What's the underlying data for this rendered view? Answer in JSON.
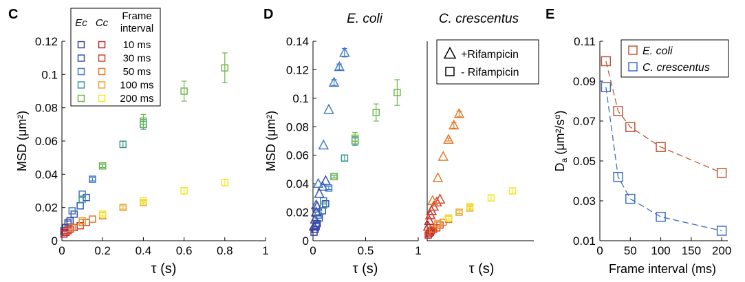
{
  "panels": {
    "C": "C",
    "D": "D",
    "E": "E"
  },
  "chart_data": [
    {
      "id": "C",
      "type": "scatter",
      "xlabel": "τ (s)",
      "ylabel": "MSD (μm²)",
      "xlim": [
        0,
        1
      ],
      "ylim": [
        0,
        0.12
      ],
      "xticks": [
        "0",
        "0.2",
        "0.4",
        "0.6",
        "0.8",
        "1"
      ],
      "yticks": [
        "0",
        "0.02",
        "0.04",
        "0.06",
        "0.08",
        "0.1",
        "0.12"
      ],
      "legend": {
        "headers": [
          "Ec",
          "Cc",
          "Frame interval"
        ],
        "rows": [
          {
            "label": "10 ms",
            "ec_color": "#3b3f9a",
            "cc_color": "#c0262a"
          },
          {
            "label": "30 ms",
            "ec_color": "#3456b0",
            "cc_color": "#d6402a"
          },
          {
            "label": "50 ms",
            "ec_color": "#3c78c4",
            "cc_color": "#e07a2a"
          },
          {
            "label": "100 ms",
            "ec_color": "#3e9c8a",
            "cc_color": "#eaa52c"
          },
          {
            "label": "200 ms",
            "ec_color": "#6fb84a",
            "cc_color": "#f0e82a"
          }
        ]
      },
      "series": [
        {
          "name": "E. coli 10 ms",
          "color": "#3b3f9a",
          "x": [
            0.01,
            0.02,
            0.03,
            0.04
          ],
          "y": [
            0.006,
            0.008,
            0.01,
            0.012
          ],
          "err": [
            0,
            0,
            0,
            0
          ]
        },
        {
          "name": "E. coli 30 ms",
          "color": "#3456b0",
          "x": [
            0.03,
            0.06,
            0.09,
            0.12
          ],
          "y": [
            0.011,
            0.016,
            0.021,
            0.026
          ],
          "err": [
            0,
            0,
            0,
            0
          ]
        },
        {
          "name": "E. coli 50 ms",
          "color": "#3c78c4",
          "x": [
            0.05,
            0.1,
            0.15,
            0.2
          ],
          "y": [
            0.018,
            0.028,
            0.037,
            0.045
          ],
          "err": [
            0,
            0,
            0.001,
            0.001
          ]
        },
        {
          "name": "E. coli 100 ms",
          "color": "#3e9c8a",
          "x": [
            0.1,
            0.2,
            0.3,
            0.4
          ],
          "y": [
            0.025,
            0.045,
            0.058,
            0.07
          ],
          "err": [
            0,
            0.001,
            0.002,
            0.003
          ]
        },
        {
          "name": "E. coli 200 ms",
          "color": "#6fb84a",
          "x": [
            0.2,
            0.4,
            0.6,
            0.8
          ],
          "y": [
            0.045,
            0.072,
            0.09,
            0.104
          ],
          "err": [
            0.001,
            0.004,
            0.006,
            0.009
          ]
        },
        {
          "name": "C. crescentus 10 ms",
          "color": "#c0262a",
          "x": [
            0.01,
            0.02,
            0.03,
            0.04
          ],
          "y": [
            0.004,
            0.005,
            0.006,
            0.007
          ],
          "err": [
            0,
            0,
            0,
            0
          ]
        },
        {
          "name": "C. crescentus 30 ms",
          "color": "#d6402a",
          "x": [
            0.03,
            0.06,
            0.09,
            0.12
          ],
          "y": [
            0.006,
            0.008,
            0.009,
            0.011
          ],
          "err": [
            0,
            0,
            0,
            0
          ]
        },
        {
          "name": "C. crescentus 50 ms",
          "color": "#e07a2a",
          "x": [
            0.05,
            0.1,
            0.15,
            0.2
          ],
          "y": [
            0.008,
            0.011,
            0.013,
            0.015
          ],
          "err": [
            0,
            0,
            0,
            0
          ]
        },
        {
          "name": "C. crescentus 100 ms",
          "color": "#eaa52c",
          "x": [
            0.1,
            0.2,
            0.3,
            0.4
          ],
          "y": [
            0.012,
            0.016,
            0.02,
            0.023
          ],
          "err": [
            0,
            0,
            0.001,
            0.001
          ]
        },
        {
          "name": "C. crescentus 200 ms",
          "color": "#f0e82a",
          "x": [
            0.2,
            0.4,
            0.6,
            0.8
          ],
          "y": [
            0.016,
            0.024,
            0.03,
            0.035
          ],
          "err": [
            0.001,
            0.001,
            0.002,
            0.002
          ]
        }
      ]
    },
    {
      "id": "D",
      "type": "scatter",
      "ylabel": "MSD (μm²)",
      "ylim": [
        0,
        0.14
      ],
      "yticks": [
        "0",
        "0.02",
        "0.04",
        "0.06",
        "0.08",
        "0.1",
        "0.12",
        "0.14"
      ],
      "legend": {
        "entries": [
          "+Rifampicin",
          "- Rifampicin"
        ]
      },
      "subplots": [
        {
          "title": "E. coli",
          "xlabel": "τ (s)",
          "xlim": [
            0,
            1
          ],
          "xticks": [
            "0",
            "0.5",
            "1"
          ],
          "series": [
            {
              "name": "E. coli 10 ms +Rif",
              "marker": "triangle",
              "color": "#3b3f9a",
              "x": [
                0.01,
                0.02,
                0.03,
                0.04
              ],
              "y": [
                0.01,
                0.015,
                0.02,
                0.024
              ],
              "err": [
                0,
                0,
                0,
                0
              ]
            },
            {
              "name": "E. coli 30 ms +Rif",
              "marker": "triangle",
              "color": "#3456b0",
              "x": [
                0.03,
                0.06,
                0.09,
                0.12
              ],
              "y": [
                0.025,
                0.033,
                0.038,
                0.042
              ],
              "err": [
                0,
                0,
                0,
                0
              ]
            },
            {
              "name": "E. coli 50 ms +Rif",
              "marker": "triangle",
              "color": "#3c78c4",
              "x": [
                0.05,
                0.1,
                0.15,
                0.2,
                0.25,
                0.3
              ],
              "y": [
                0.04,
                0.067,
                0.092,
                0.111,
                0.122,
                0.132
              ],
              "err": [
                0,
                0,
                0,
                0.002,
                0.002,
                0.003
              ]
            },
            {
              "name": "E. coli 10 ms",
              "marker": "square",
              "color": "#3b3f9a",
              "x": [
                0.01,
                0.02,
                0.03,
                0.04
              ],
              "y": [
                0.006,
                0.008,
                0.01,
                0.012
              ],
              "err": [
                0,
                0,
                0,
                0
              ]
            },
            {
              "name": "E. coli 30 ms",
              "marker": "square",
              "color": "#3456b0",
              "x": [
                0.03,
                0.06,
                0.09,
                0.12
              ],
              "y": [
                0.011,
                0.016,
                0.021,
                0.026
              ],
              "err": [
                0,
                0,
                0,
                0
              ]
            },
            {
              "name": "E. coli 50 ms",
              "marker": "square",
              "color": "#3c78c4",
              "x": [
                0.05,
                0.1,
                0.15,
                0.2
              ],
              "y": [
                0.018,
                0.028,
                0.037,
                0.045
              ],
              "err": [
                0,
                0,
                0.001,
                0.001
              ]
            },
            {
              "name": "E. coli 100 ms",
              "marker": "square",
              "color": "#3e9c8a",
              "x": [
                0.1,
                0.2,
                0.3,
                0.4
              ],
              "y": [
                0.025,
                0.045,
                0.058,
                0.07
              ],
              "err": [
                0,
                0.001,
                0.002,
                0.003
              ]
            },
            {
              "name": "E. coli 200 ms",
              "marker": "square",
              "color": "#6fb84a",
              "x": [
                0.2,
                0.4,
                0.6,
                0.8
              ],
              "y": [
                0.045,
                0.072,
                0.09,
                0.104
              ],
              "err": [
                0.001,
                0.004,
                0.006,
                0.009
              ]
            }
          ]
        },
        {
          "title": "C. crescentus",
          "xlabel": "τ (s)",
          "xlim": [
            0,
            1
          ],
          "xticks": [],
          "series": [
            {
              "name": "C. crescentus 10 ms +Rif",
              "marker": "triangle",
              "color": "#c0262a",
              "x": [
                0.01,
                0.02,
                0.03,
                0.04
              ],
              "y": [
                0.01,
                0.014,
                0.018,
                0.021
              ],
              "err": [
                0,
                0,
                0,
                0
              ]
            },
            {
              "name": "C. crescentus 30 ms +Rif",
              "marker": "triangle",
              "color": "#d6402a",
              "x": [
                0.03,
                0.06,
                0.09,
                0.12
              ],
              "y": [
                0.018,
                0.024,
                0.027,
                0.029
              ],
              "err": [
                0,
                0,
                0,
                0
              ]
            },
            {
              "name": "C. crescentus 50 ms +Rif",
              "marker": "triangle",
              "color": "#e07a2a",
              "x": [
                0.05,
                0.1,
                0.15,
                0.2,
                0.25,
                0.3
              ],
              "y": [
                0.028,
                0.044,
                0.059,
                0.071,
                0.081,
                0.089
              ],
              "err": [
                0,
                0,
                0,
                0.001,
                0.002,
                0.002
              ]
            },
            {
              "name": "C. crescentus 10 ms",
              "marker": "square",
              "color": "#c0262a",
              "x": [
                0.01,
                0.02,
                0.03,
                0.04
              ],
              "y": [
                0.004,
                0.005,
                0.006,
                0.007
              ],
              "err": [
                0,
                0,
                0,
                0
              ]
            },
            {
              "name": "C. crescentus 30 ms",
              "marker": "square",
              "color": "#d6402a",
              "x": [
                0.03,
                0.06,
                0.09,
                0.12
              ],
              "y": [
                0.006,
                0.008,
                0.009,
                0.011
              ],
              "err": [
                0,
                0,
                0,
                0
              ]
            },
            {
              "name": "C. crescentus 50 ms",
              "marker": "square",
              "color": "#e07a2a",
              "x": [
                0.05,
                0.1,
                0.15,
                0.2
              ],
              "y": [
                0.008,
                0.011,
                0.013,
                0.015
              ],
              "err": [
                0,
                0,
                0,
                0
              ]
            },
            {
              "name": "C. crescentus 100 ms",
              "marker": "square",
              "color": "#eaa52c",
              "x": [
                0.1,
                0.2,
                0.3,
                0.4
              ],
              "y": [
                0.012,
                0.016,
                0.02,
                0.023
              ],
              "err": [
                0,
                0,
                0.001,
                0.001
              ]
            },
            {
              "name": "C. crescentus 200 ms",
              "marker": "square",
              "color": "#f0e82a",
              "x": [
                0.2,
                0.4,
                0.6,
                0.8
              ],
              "y": [
                0.016,
                0.024,
                0.03,
                0.035
              ],
              "err": [
                0.001,
                0.001,
                0.002,
                0.002
              ]
            }
          ]
        }
      ]
    },
    {
      "id": "E",
      "type": "line",
      "xlabel": "Frame interval (ms)",
      "ylabel_main": "D",
      "ylabel_sub": "a",
      "ylabel_rest": " (μm²/s",
      "ylabel_sup": "α",
      "ylabel_end": ")",
      "xlim": [
        0,
        210
      ],
      "ylim": [
        0.01,
        0.11
      ],
      "xticks": [
        "0",
        "50",
        "100",
        "150",
        "200"
      ],
      "yticks": [
        "0.01",
        "0.03",
        "0.05",
        "0.07",
        "0.09",
        "0.11"
      ],
      "legend_position": "top-right",
      "series": [
        {
          "name": "E. coli",
          "color": "#c0563a",
          "x": [
            10,
            30,
            50,
            100,
            200
          ],
          "y": [
            0.1,
            0.075,
            0.067,
            0.057,
            0.044
          ]
        },
        {
          "name": "C. crescentus",
          "color": "#3f6fc0",
          "x": [
            10,
            30,
            50,
            100,
            200
          ],
          "y": [
            0.087,
            0.042,
            0.031,
            0.022,
            0.015
          ]
        }
      ]
    }
  ]
}
